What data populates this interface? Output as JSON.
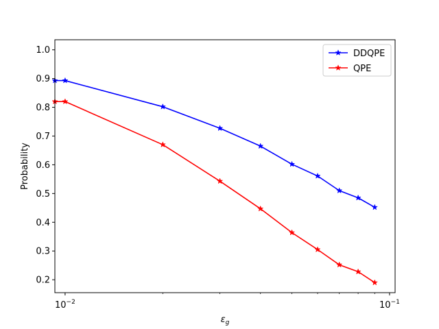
{
  "chart_data": {
    "type": "line",
    "xscale": "log",
    "xlim": [
      0.0093,
      0.104
    ],
    "ylim": [
      0.155,
      1.035
    ],
    "xlabel_main": "ε",
    "xlabel_sub": "g",
    "ylabel": "Probability",
    "x_ticks": [
      {
        "value": 0.01,
        "base": "10",
        "exp": "−2"
      },
      {
        "value": 0.1,
        "base": "10",
        "exp": "−1"
      }
    ],
    "y_ticks": [
      {
        "value": 0.2,
        "label": "0.2"
      },
      {
        "value": 0.3,
        "label": "0.3"
      },
      {
        "value": 0.4,
        "label": "0.4"
      },
      {
        "value": 0.5,
        "label": "0.5"
      },
      {
        "value": 0.6,
        "label": "0.6"
      },
      {
        "value": 0.7,
        "label": "0.7"
      },
      {
        "value": 0.8,
        "label": "0.8"
      },
      {
        "value": 0.9,
        "label": "0.9"
      },
      {
        "value": 1.0,
        "label": "1.0"
      }
    ],
    "legend_placement": "top-right",
    "series": [
      {
        "name": "DDQPE",
        "color": "#0000ff",
        "marker": "star",
        "x": [
          0.0093,
          0.01,
          0.02,
          0.03,
          0.04,
          0.05,
          0.06,
          0.07,
          0.08,
          0.09
        ],
        "y": [
          0.893,
          0.893,
          0.802,
          0.727,
          0.665,
          0.602,
          0.561,
          0.51,
          0.485,
          0.452
        ]
      },
      {
        "name": "QPE",
        "color": "#ff0000",
        "marker": "star",
        "x": [
          0.0093,
          0.01,
          0.02,
          0.03,
          0.04,
          0.05,
          0.06,
          0.07,
          0.08,
          0.09
        ],
        "y": [
          0.82,
          0.82,
          0.67,
          0.543,
          0.447,
          0.364,
          0.305,
          0.252,
          0.228,
          0.19
        ]
      }
    ]
  }
}
